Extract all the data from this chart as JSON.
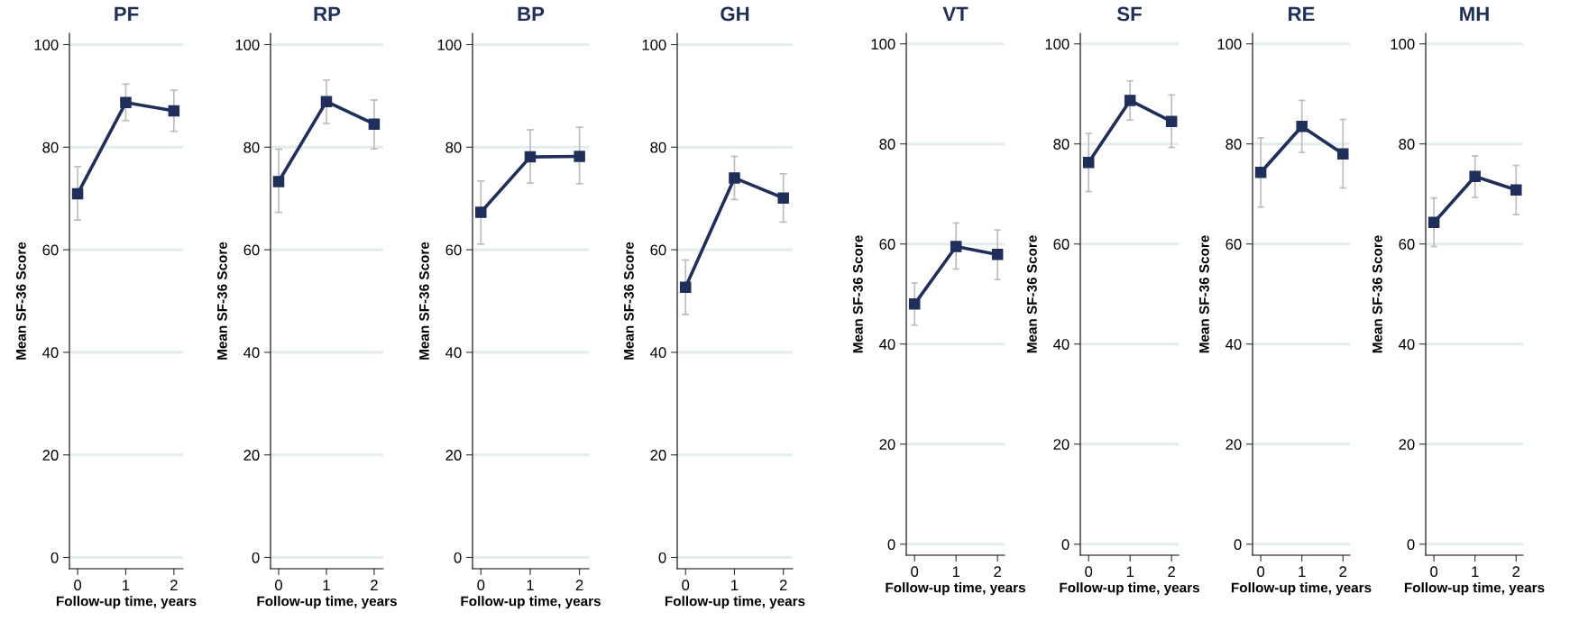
{
  "chart_data": [
    {
      "type": "line",
      "title": "PF",
      "xlabel": "Follow-up time, years",
      "ylabel": "Mean SF-36 Score",
      "x": [
        0,
        1,
        2
      ],
      "xlim": [
        -0.17,
        2.19
      ],
      "xticks": [
        0,
        1,
        2
      ],
      "ylim": [
        -2.2,
        102.2
      ],
      "yticks": [
        0,
        20,
        40,
        60,
        80,
        100
      ],
      "grid": "y",
      "marker": "square",
      "line_style": "solid",
      "series": [
        {
          "color": "#1f2f5a",
          "values": [
            70.9,
            88.7,
            87.1
          ],
          "errors": [
            [
              65.8,
              76.2
            ],
            [
              85.2,
              92.3
            ],
            [
              83.1,
              91.1
            ]
          ]
        }
      ]
    },
    {
      "type": "line",
      "title": "RP",
      "xlabel": "Follow-up time, years",
      "ylabel": "Mean SF-36 Score",
      "x": [
        0,
        1,
        2
      ],
      "xlim": [
        -0.17,
        2.19
      ],
      "xticks": [
        0,
        1,
        2
      ],
      "ylim": [
        -2.2,
        102.2
      ],
      "yticks": [
        0,
        20,
        40,
        60,
        80,
        100
      ],
      "grid": "y",
      "marker": "square",
      "line_style": "solid",
      "series": [
        {
          "color": "#1f2f5a",
          "values": [
            73.3,
            88.9,
            84.5
          ],
          "errors": [
            [
              67.3,
              79.6
            ],
            [
              84.6,
              93.1
            ],
            [
              79.7,
              89.2
            ]
          ]
        }
      ]
    },
    {
      "type": "line",
      "title": "BP",
      "xlabel": "Follow-up time, years",
      "ylabel": "Mean SF-36 Score",
      "x": [
        0,
        1,
        2
      ],
      "xlim": [
        -0.17,
        2.19
      ],
      "xticks": [
        0,
        1,
        2
      ],
      "ylim": [
        -2.2,
        102.2
      ],
      "yticks": [
        0,
        20,
        40,
        60,
        80,
        100
      ],
      "grid": "y",
      "marker": "square",
      "line_style": "solid",
      "series": [
        {
          "color": "#1f2f5a",
          "values": [
            67.3,
            78.1,
            78.2
          ],
          "errors": [
            [
              61.1,
              73.4
            ],
            [
              73.0,
              83.4
            ],
            [
              72.9,
              83.9
            ]
          ]
        }
      ]
    },
    {
      "type": "line",
      "title": "GH",
      "xlabel": "Follow-up time, years",
      "ylabel": "Mean SF-36 Score",
      "x": [
        0,
        1,
        2
      ],
      "xlim": [
        -0.17,
        2.19
      ],
      "xticks": [
        0,
        1,
        2
      ],
      "ylim": [
        -2.2,
        102.2
      ],
      "yticks": [
        0,
        20,
        40,
        60,
        80,
        100
      ],
      "grid": "y",
      "marker": "square",
      "line_style": "solid",
      "series": [
        {
          "color": "#1f2f5a",
          "values": [
            52.7,
            74.0,
            70.1
          ],
          "errors": [
            [
              47.4,
              58.0
            ],
            [
              69.8,
              78.2
            ],
            [
              65.4,
              74.8
            ]
          ]
        }
      ]
    },
    {
      "type": "line",
      "title": "VT",
      "xlabel": "Follow-up time, years",
      "ylabel": "Mean SF-36 Score",
      "x": [
        0,
        1,
        2
      ],
      "xlim": [
        -0.2,
        2.17
      ],
      "xticks": [
        0,
        1,
        2
      ],
      "ylim": [
        -2.2,
        102.1
      ],
      "yticks": [
        0,
        20,
        40,
        60,
        80,
        100
      ],
      "grid": "y",
      "marker": "square",
      "line_style": "solid",
      "series": [
        {
          "color": "#1f2f5a",
          "values": [
            48.0,
            59.5,
            57.9
          ],
          "errors": [
            [
              43.8,
              52.2
            ],
            [
              55.0,
              64.2
            ],
            [
              52.9,
              62.8
            ]
          ]
        }
      ]
    },
    {
      "type": "line",
      "title": "SF",
      "xlabel": "Follow-up time, years",
      "ylabel": "Mean SF-36 Score",
      "x": [
        0,
        1,
        2
      ],
      "xlim": [
        -0.2,
        2.17
      ],
      "xticks": [
        0,
        1,
        2
      ],
      "ylim": [
        -2.2,
        102.1
      ],
      "yticks": [
        0,
        20,
        40,
        60,
        80,
        100
      ],
      "grid": "y",
      "marker": "square",
      "line_style": "solid",
      "series": [
        {
          "color": "#1f2f5a",
          "values": [
            76.3,
            88.7,
            84.5
          ],
          "errors": [
            [
              70.5,
              82.1
            ],
            [
              84.8,
              92.6
            ],
            [
              79.3,
              89.8
            ]
          ]
        }
      ]
    },
    {
      "type": "line",
      "title": "RE",
      "xlabel": "Follow-up time, years",
      "ylabel": "Mean SF-36 Score",
      "x": [
        0,
        1,
        2
      ],
      "xlim": [
        -0.2,
        2.17
      ],
      "xticks": [
        0,
        1,
        2
      ],
      "ylim": [
        -2.2,
        102.1
      ],
      "yticks": [
        0,
        20,
        40,
        60,
        80,
        100
      ],
      "grid": "y",
      "marker": "square",
      "line_style": "solid",
      "series": [
        {
          "color": "#1f2f5a",
          "values": [
            74.3,
            83.5,
            78.0
          ],
          "errors": [
            [
              67.4,
              81.2
            ],
            [
              78.3,
              88.7
            ],
            [
              71.2,
              84.9
            ]
          ]
        }
      ]
    },
    {
      "type": "line",
      "title": "MH",
      "xlabel": "Follow-up time, years",
      "ylabel": "Mean SF-36 Score",
      "x": [
        0,
        1,
        2
      ],
      "xlim": [
        -0.2,
        2.17
      ],
      "xticks": [
        0,
        1,
        2
      ],
      "ylim": [
        -2.2,
        102.1
      ],
      "yticks": [
        0,
        20,
        40,
        60,
        80,
        100
      ],
      "grid": "y",
      "marker": "square",
      "line_style": "solid",
      "series": [
        {
          "color": "#1f2f5a",
          "values": [
            64.3,
            73.5,
            70.8
          ],
          "errors": [
            [
              59.5,
              69.2
            ],
            [
              69.3,
              77.6
            ],
            [
              65.9,
              75.7
            ]
          ]
        }
      ]
    }
  ]
}
